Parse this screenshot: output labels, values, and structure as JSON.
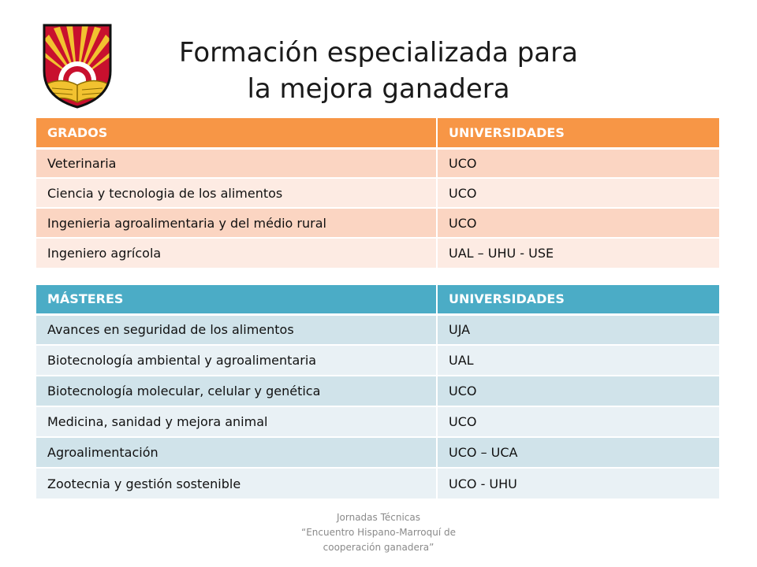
{
  "slide": {
    "title_line1": "Formación especializada para",
    "title_line2": "la mejora ganadera",
    "logo": "university-coat-of-arms"
  },
  "grados_table": {
    "header_color": "#f79646",
    "headers": [
      "GRADOS",
      "UNIVERSIDADES"
    ],
    "rows": [
      [
        "Veterinaria",
        "UCO"
      ],
      [
        "Ciencia y tecnologia de los alimentos",
        "UCO"
      ],
      [
        "Ingenieria agroalimentaria y del médio rural",
        "UCO"
      ],
      [
        "Ingeniero agrícola",
        "UAL – UHU - USE"
      ]
    ]
  },
  "masteres_table": {
    "header_color": "#4bacc6",
    "headers": [
      "MÁSTERES",
      "UNIVERSIDADES"
    ],
    "rows": [
      [
        "Avances en seguridad de los alimentos",
        "UJA"
      ],
      [
        "Biotecnología ambiental y agroalimentaria",
        "UAL"
      ],
      [
        "Biotecnología molecular, celular y genética",
        "UCO"
      ],
      [
        "Medicina, sanidad y mejora animal",
        "UCO"
      ],
      [
        "Agroalimentación",
        "UCO – UCA"
      ],
      [
        "Zootecnia y gestión sostenible",
        "UCO - UHU"
      ]
    ]
  },
  "footer": {
    "line1": "Jornadas Técnicas",
    "line2": "“Encuentro Hispano-Marroquí de",
    "line3": "cooperación ganadera”"
  }
}
